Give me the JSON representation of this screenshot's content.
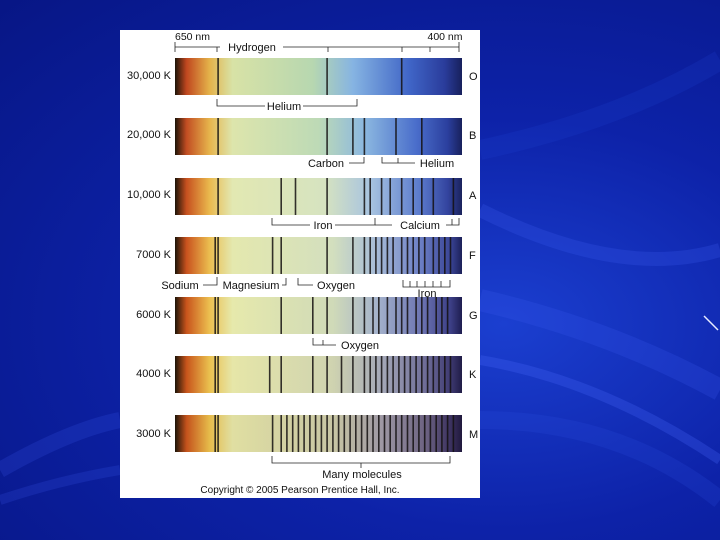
{
  "slide": {
    "background_color": "#0d22a8",
    "figure": {
      "top_labels": {
        "left_nm": "650 nm",
        "hydrogen": "Hydrogen",
        "right_nm": "400 nm"
      },
      "copyright": "Copyright © 2005 Pearson Prentice Hall, Inc.",
      "spectra": [
        {
          "temperature": "30,000 K",
          "class": "O",
          "lines": [
            0.15,
            0.53,
            0.79
          ],
          "annotations": [
            {
              "text": "Helium"
            }
          ]
        },
        {
          "temperature": "20,000 K",
          "class": "B",
          "lines": [
            0.15,
            0.53,
            0.62,
            0.66,
            0.77,
            0.86
          ],
          "annotations": [
            {
              "text": "Carbon"
            },
            {
              "text": "Helium"
            }
          ]
        },
        {
          "temperature": "10,000 K",
          "class": "A",
          "lines": [
            0.15,
            0.37,
            0.42,
            0.53,
            0.66,
            0.68,
            0.72,
            0.75,
            0.79,
            0.83,
            0.86,
            0.9,
            0.97
          ],
          "annotations": [
            {
              "text": "Iron"
            },
            {
              "text": "Calcium"
            }
          ]
        },
        {
          "temperature": "7000 K",
          "class": "F",
          "lines": [
            0.14,
            0.15,
            0.34,
            0.37,
            0.53,
            0.62,
            0.66,
            0.68,
            0.7,
            0.72,
            0.74,
            0.76,
            0.79,
            0.81,
            0.83,
            0.85,
            0.87,
            0.9,
            0.92,
            0.94,
            0.96
          ],
          "annotations": [
            {
              "text": "Sodium"
            },
            {
              "text": "Magnesium"
            },
            {
              "text": "Oxygen"
            },
            {
              "text": "Iron"
            }
          ]
        },
        {
          "temperature": "6000 K",
          "class": "G",
          "lines": [
            0.14,
            0.15,
            0.37,
            0.48,
            0.53,
            0.62,
            0.66,
            0.69,
            0.71,
            0.74,
            0.77,
            0.79,
            0.81,
            0.84,
            0.86,
            0.88,
            0.91,
            0.93,
            0.95
          ],
          "annotations": [
            {
              "text": "Oxygen"
            }
          ]
        },
        {
          "temperature": "4000 K",
          "class": "K",
          "lines": [
            0.14,
            0.15,
            0.33,
            0.37,
            0.48,
            0.53,
            0.58,
            0.62,
            0.66,
            0.68,
            0.7,
            0.72,
            0.74,
            0.76,
            0.78,
            0.8,
            0.82,
            0.84,
            0.86,
            0.88,
            0.9,
            0.92,
            0.94,
            0.96
          ],
          "annotations": []
        },
        {
          "temperature": "3000 K",
          "class": "M",
          "lines": [
            0.14,
            0.15,
            0.34,
            0.37,
            0.39,
            0.41,
            0.43,
            0.45,
            0.47,
            0.49,
            0.51,
            0.53,
            0.55,
            0.57,
            0.59,
            0.61,
            0.63,
            0.65,
            0.67,
            0.69,
            0.71,
            0.73,
            0.75,
            0.77,
            0.79,
            0.81,
            0.83,
            0.85,
            0.87,
            0.89,
            0.91,
            0.93,
            0.95,
            0.97
          ],
          "annotations": [
            {
              "text": "Many molecules"
            }
          ]
        }
      ]
    }
  }
}
